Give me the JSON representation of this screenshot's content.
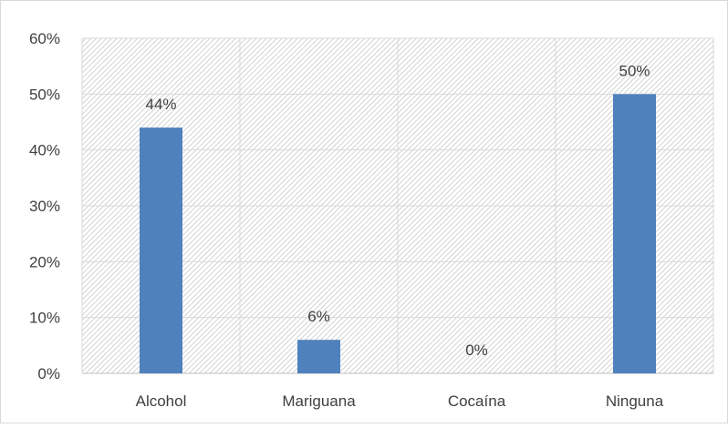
{
  "chart_data": {
    "type": "bar",
    "categories": [
      "Alcohol",
      "Mariguana",
      "Cocaína",
      "Ninguna"
    ],
    "values": [
      44,
      6,
      0,
      50
    ],
    "data_labels": [
      "44%",
      "6%",
      "0%",
      "50%"
    ],
    "y_tick_labels": [
      "0%",
      "10%",
      "20%",
      "30%",
      "40%",
      "50%",
      "60%"
    ],
    "y_ticks": [
      0,
      10,
      20,
      30,
      40,
      50,
      60
    ],
    "ylim": [
      0,
      60
    ],
    "title": "",
    "xlabel": "",
    "ylabel": "",
    "grid": true,
    "legend": "none",
    "bar_color": "#4F81BD",
    "plot_background": "hatched-gray"
  }
}
